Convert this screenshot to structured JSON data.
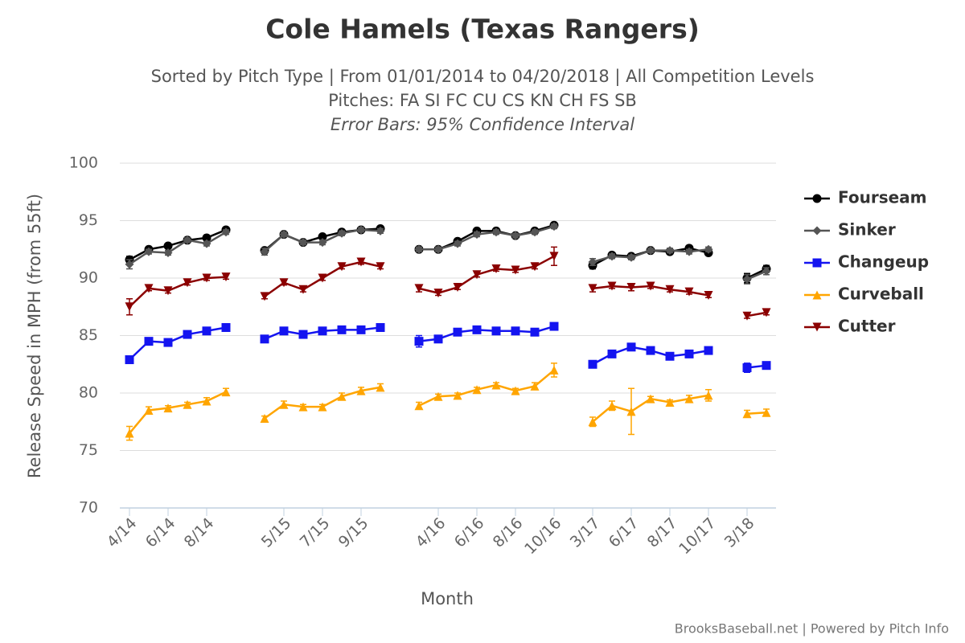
{
  "chart_data": {
    "type": "line",
    "title": "Cole Hamels (Texas Rangers)",
    "subtitle": [
      "Sorted by Pitch Type | From 01/01/2014 to 04/20/2018 | All Competition Levels",
      "Pitches: FA SI FC CU CS KN CH FS SB",
      "Error Bars: 95% Confidence Interval"
    ],
    "x_label": "Month",
    "y_label": "Release Speed in MPH (from 55ft)",
    "credit": "BrooksBaseball.net | Powered by Pitch Info",
    "categories": [
      "4/14",
      null,
      "6/14",
      null,
      "8/14",
      null,
      null,
      null,
      "5/15",
      null,
      "7/15",
      null,
      "9/15",
      null,
      null,
      null,
      "4/16",
      null,
      "6/16",
      null,
      "8/16",
      null,
      "10/16",
      null,
      "3/17",
      null,
      "6/17",
      null,
      "8/17",
      null,
      "10/17",
      null,
      "3/18",
      null
    ],
    "ylim": [
      70,
      100
    ],
    "yticks": [
      70,
      75,
      80,
      85,
      90,
      95,
      100
    ],
    "grid": true,
    "legend": "right",
    "series": [
      {
        "name": "Fourseam",
        "color": "#000000",
        "marker": "circle",
        "values": [
          91.6,
          92.5,
          92.8,
          93.3,
          93.5,
          94.2,
          null,
          92.4,
          93.8,
          93.1,
          93.6,
          94.0,
          94.2,
          94.3,
          null,
          92.5,
          92.5,
          93.2,
          94.1,
          94.1,
          93.7,
          94.1,
          94.6,
          null,
          91.1,
          92.0,
          91.9,
          92.4,
          92.3,
          92.6,
          92.2,
          null,
          90.0,
          90.8
        ],
        "errors": [
          0.3,
          0.2,
          0.2,
          0.2,
          0.2,
          0.2,
          null,
          0.2,
          0.2,
          0.2,
          0.2,
          0.2,
          0.2,
          0.2,
          null,
          0.2,
          0.2,
          0.2,
          0.2,
          0.2,
          0.2,
          0.2,
          0.2,
          null,
          0.3,
          0.2,
          0.2,
          0.2,
          0.2,
          0.2,
          0.2,
          null,
          0.4,
          0.3
        ]
      },
      {
        "name": "Sinker",
        "color": "#555555",
        "marker": "diamond",
        "values": [
          91.2,
          92.3,
          92.2,
          93.3,
          93.0,
          94.0,
          null,
          92.3,
          93.8,
          93.1,
          93.1,
          93.9,
          94.2,
          94.1,
          null,
          92.5,
          92.5,
          93.0,
          93.8,
          94.0,
          93.7,
          94.0,
          94.5,
          null,
          91.4,
          91.9,
          91.8,
          92.4,
          92.4,
          92.3,
          92.5,
          null,
          89.9,
          90.6
        ],
        "errors": [
          0.4,
          0.2,
          0.2,
          0.2,
          0.2,
          0.2,
          null,
          0.3,
          0.2,
          0.2,
          0.2,
          0.2,
          0.2,
          0.2,
          null,
          0.2,
          0.2,
          0.2,
          0.2,
          0.2,
          0.2,
          0.2,
          0.2,
          null,
          0.3,
          0.2,
          0.2,
          0.2,
          0.2,
          0.2,
          0.2,
          null,
          0.4,
          0.3
        ]
      },
      {
        "name": "Changeup",
        "color": "#1414f0",
        "marker": "square",
        "values": [
          82.9,
          84.5,
          84.4,
          85.1,
          85.4,
          85.7,
          null,
          84.7,
          85.4,
          85.1,
          85.4,
          85.5,
          85.5,
          85.7,
          null,
          84.5,
          84.7,
          85.3,
          85.5,
          85.4,
          85.4,
          85.3,
          85.8,
          null,
          82.5,
          83.4,
          84.0,
          83.7,
          83.2,
          83.4,
          83.7,
          null,
          82.2,
          82.4
        ],
        "errors": [
          0.3,
          0.2,
          0.2,
          0.2,
          0.2,
          0.2,
          null,
          0.2,
          0.2,
          0.2,
          0.2,
          0.2,
          0.2,
          0.2,
          null,
          0.5,
          0.2,
          0.2,
          0.2,
          0.2,
          0.2,
          0.2,
          0.3,
          null,
          0.2,
          0.2,
          0.3,
          0.2,
          0.2,
          0.2,
          0.2,
          null,
          0.4,
          0.2
        ]
      },
      {
        "name": "Curveball",
        "color": "#ffa500",
        "marker": "triangle",
        "values": [
          76.5,
          78.5,
          78.7,
          79.0,
          79.3,
          80.1,
          null,
          77.8,
          79.0,
          78.8,
          78.8,
          79.7,
          80.2,
          80.5,
          null,
          78.9,
          79.7,
          79.8,
          80.3,
          80.7,
          80.2,
          80.6,
          82.0,
          null,
          77.5,
          78.9,
          78.4,
          79.5,
          79.2,
          79.5,
          79.8,
          null,
          78.2,
          78.3
        ],
        "errors": [
          0.6,
          0.3,
          0.2,
          0.2,
          0.3,
          0.3,
          null,
          0.2,
          0.3,
          0.2,
          0.2,
          0.3,
          0.3,
          0.3,
          null,
          0.3,
          0.2,
          0.2,
          0.2,
          0.2,
          0.2,
          0.3,
          0.6,
          null,
          0.4,
          0.4,
          2.0,
          0.2,
          0.2,
          0.3,
          0.5,
          null,
          0.3,
          0.3
        ]
      },
      {
        "name": "Cutter",
        "color": "#8b0000",
        "marker": "triangle-down",
        "values": [
          87.5,
          89.1,
          88.9,
          89.6,
          90.0,
          90.1,
          null,
          88.4,
          89.6,
          89.0,
          90.0,
          91.0,
          91.4,
          91.0,
          null,
          89.1,
          88.7,
          89.2,
          90.3,
          90.8,
          90.7,
          91.0,
          91.9,
          null,
          89.1,
          89.3,
          89.2,
          89.3,
          89.0,
          88.8,
          88.5,
          null,
          86.7,
          87.0
        ],
        "errors": [
          0.7,
          0.2,
          0.2,
          0.2,
          0.2,
          0.2,
          null,
          0.2,
          0.2,
          0.2,
          0.2,
          0.2,
          0.2,
          0.2,
          null,
          0.3,
          0.2,
          0.2,
          0.2,
          0.2,
          0.2,
          0.2,
          0.8,
          null,
          0.3,
          0.2,
          0.3,
          0.2,
          0.2,
          0.2,
          0.2,
          null,
          0.2,
          0.2
        ]
      }
    ]
  }
}
